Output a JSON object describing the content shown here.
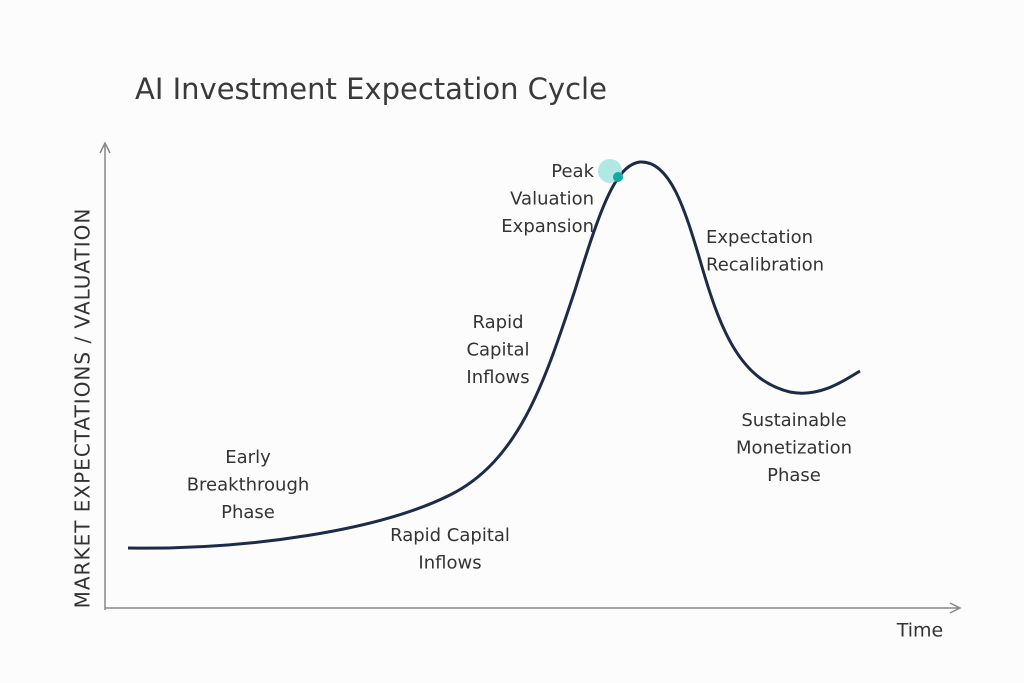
{
  "title": "AI Investment Expectation Cycle",
  "y_axis_label": "MARKET EXPECTATIONS / VALUATION",
  "x_axis_label": "Time",
  "labels": [
    {
      "lines": [
        "Peak",
        "Valuation",
        "Expansion"
      ]
    },
    {
      "lines": [
        "Expectation",
        "Recalibration"
      ]
    },
    {
      "lines": [
        "Rapid",
        "Capital",
        "Inflows"
      ]
    },
    {
      "lines": [
        "Sustainable",
        "Monetization",
        "Phase"
      ]
    },
    {
      "lines": [
        "Early",
        "Breakthrough",
        "Phase"
      ]
    },
    {
      "lines": [
        "Rapid Capital",
        "Inflows"
      ]
    }
  ]
}
